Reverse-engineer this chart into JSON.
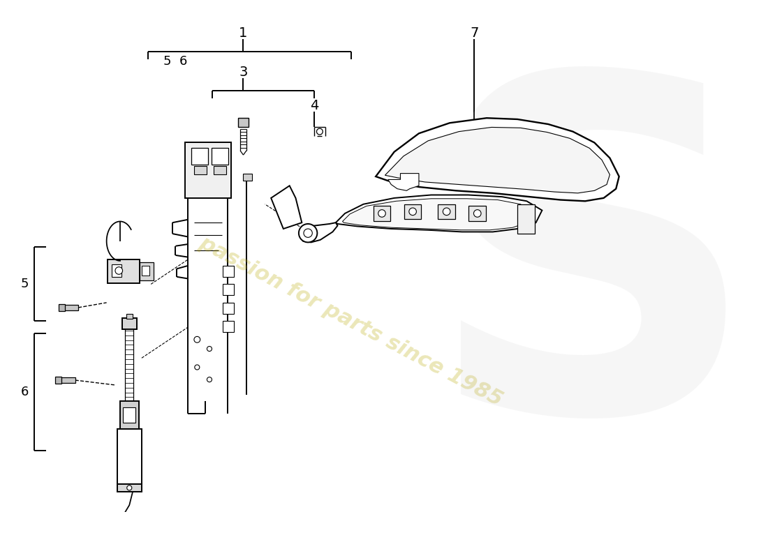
{
  "background_color": "#ffffff",
  "line_color": "#000000",
  "watermark_text": "passion for parts since 1985",
  "watermark_color": "#b8a800",
  "watermark_alpha": 0.28,
  "figsize": [
    11.0,
    8.0
  ],
  "dpi": 100
}
